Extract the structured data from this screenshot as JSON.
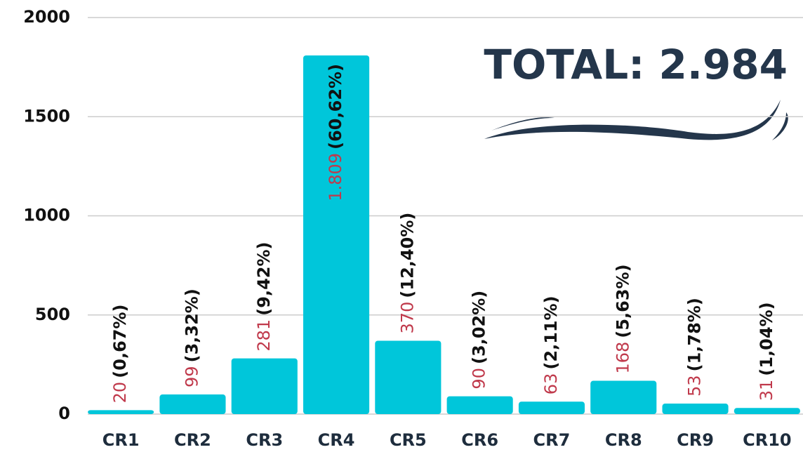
{
  "chart_data": {
    "type": "bar",
    "annotation": "TOTAL: 2.984",
    "categories": [
      "CR1",
      "CR2",
      "CR3",
      "CR4",
      "CR5",
      "CR6",
      "CR7",
      "CR8",
      "CR9",
      "CR10"
    ],
    "values": [
      20,
      99,
      281,
      1809,
      370,
      90,
      63,
      168,
      53,
      31
    ],
    "value_labels": [
      "20",
      "99",
      "281",
      "1.809",
      "370",
      "90",
      "63",
      "168",
      "53",
      "31"
    ],
    "percent_labels": [
      "(0,67%)",
      "(3,32%)",
      "(9,42%)",
      "(60,62%)",
      "(12,40%)",
      "(3,02%)",
      "(2,11%)",
      "(5,63%)",
      "(1,78%)",
      "(1,04%)"
    ],
    "color": "#00c6da",
    "ylim": [
      0,
      2000
    ],
    "yticks": [
      0,
      500,
      1000,
      1500,
      2000
    ],
    "grid": true
  }
}
